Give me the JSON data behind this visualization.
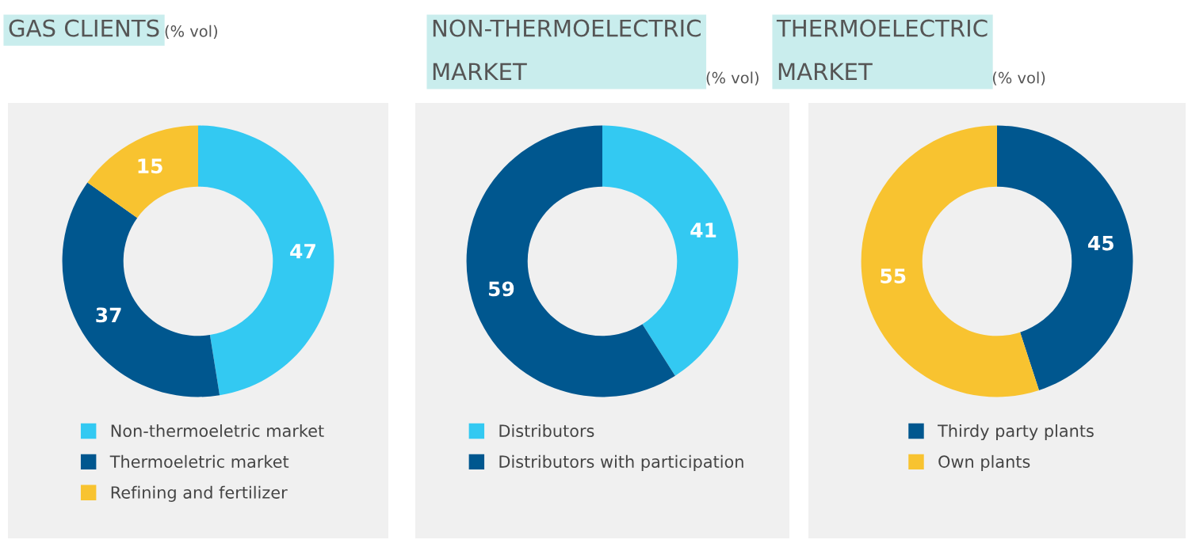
{
  "chart_data": [
    {
      "type": "donut",
      "title": "GAS CLIENTS",
      "subtitle": "(% vol)",
      "categories": [
        "Non-thermoeletric market",
        "Thermoeletric market",
        "Refining and fertilizer"
      ],
      "values": [
        47,
        37,
        15
      ],
      "colors": [
        "#33c9f2",
        "#00578f",
        "#f8c330"
      ],
      "data_labels": true,
      "legend": "bottom"
    },
    {
      "type": "donut",
      "title": "NON-THERMOELECTRIC\nMARKET",
      "subtitle": "(% vol)",
      "categories": [
        "Distributors",
        "Distributors with participation"
      ],
      "values": [
        41,
        59
      ],
      "colors": [
        "#33c9f2",
        "#00578f"
      ],
      "data_labels": true,
      "legend": "bottom"
    },
    {
      "type": "donut",
      "title": "THERMOELECTRIC\nMARKET",
      "subtitle": "(% vol)",
      "categories": [
        "Thirdy party plants",
        "Own plants"
      ],
      "values": [
        45,
        55
      ],
      "colors": [
        "#00578f",
        "#f8c330"
      ],
      "data_labels": true,
      "legend": "bottom"
    }
  ]
}
